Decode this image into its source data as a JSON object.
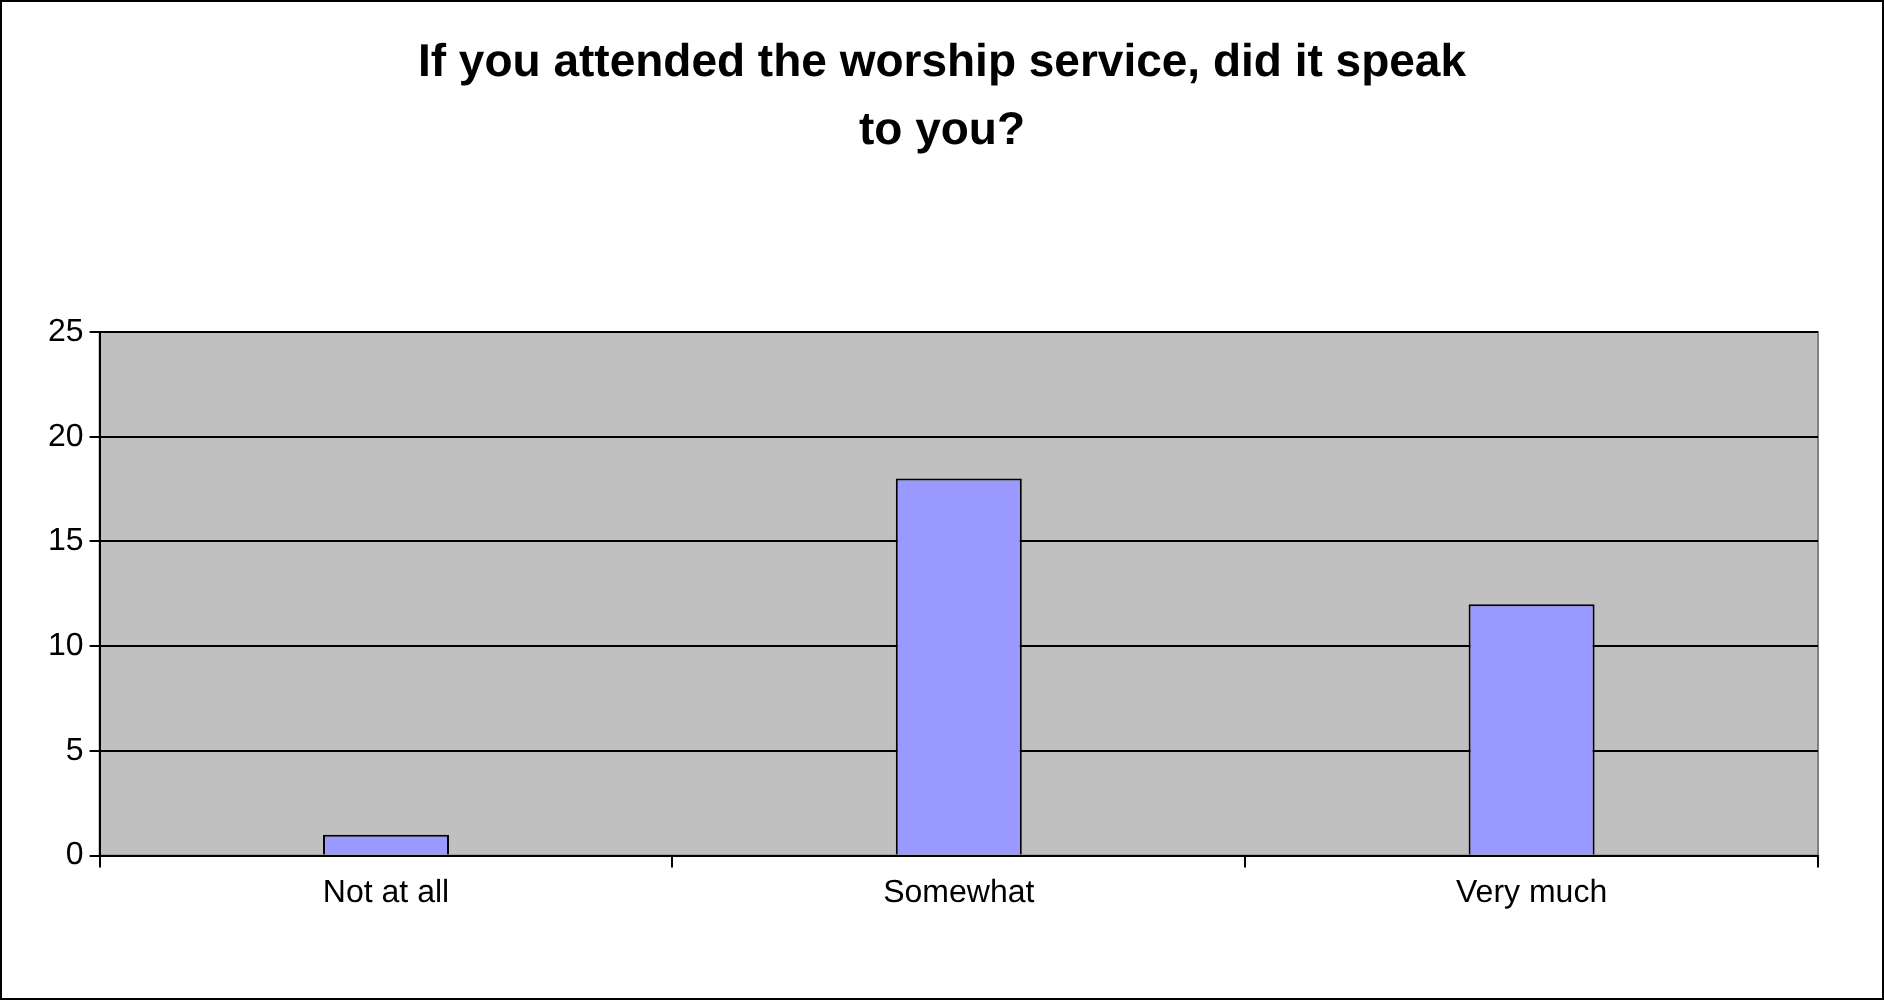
{
  "chart_data": {
    "type": "bar",
    "title": "If you attended the worship service, did it speak to you?",
    "categories": [
      "Not at all",
      "Somewhat",
      "Very much"
    ],
    "values": [
      1,
      18,
      12
    ],
    "color": "#9999ff",
    "ylim": [
      0,
      25
    ],
    "yticks": [
      0,
      5,
      10,
      15,
      20,
      25
    ],
    "grid": "y",
    "legend": false
  }
}
